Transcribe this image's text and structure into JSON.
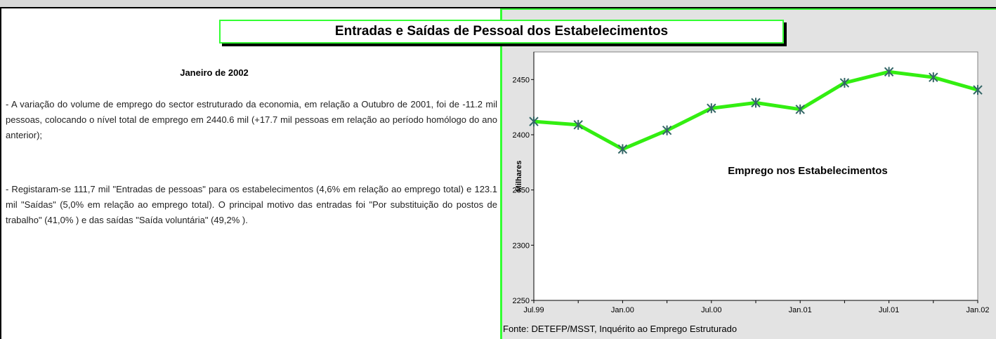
{
  "header": {
    "title": "Entradas e Saídas de Pessoal dos Estabelecimentos"
  },
  "document": {
    "subtitle": "Janeiro de 2002",
    "paragraphs": [
      "- A variação do volume de emprego do sector estruturado da economia, em relação a Outubro de 2001, foi  de -11.2 mil pessoas, colocando o nível total de emprego em 2440.6 mil (+17.7 mil pessoas em relação ao período homólogo do ano anterior);",
      "- Registaram-se 111,7 mil \"Entradas de pessoas\" para os estabelecimentos (4,6% em relação ao emprego total) e 123.1 mil \"Saídas\" (5,0% em relação ao emprego total). O principal motivo das entradas foi \"Por substituição do postos de trabalho\" (41,0% ) e das saídas \"Saída voluntária\" (49,2% )."
    ],
    "source": "Fonte: DETEFP/MSST, Inquérito ao Emprego Estruturado"
  },
  "chart_data": {
    "type": "line",
    "title": "Emprego nos Estabelecimentos",
    "y_label": "Milhares",
    "categories": [
      "Jul.99",
      null,
      "Jan.00",
      null,
      "Jul.00",
      null,
      "Jan.01",
      null,
      "Jul.01",
      null,
      "Jan.02"
    ],
    "series": [
      {
        "name": "Emprego",
        "color": "#33ee11",
        "marker_color": "#336666",
        "values": [
          2412,
          2409,
          2387,
          2404,
          2424,
          2429,
          2423,
          2447,
          2457,
          2452,
          2440.6
        ]
      }
    ],
    "ylim": [
      2250,
      2475
    ],
    "yticks": [
      2250,
      2300,
      2350,
      2400,
      2450
    ],
    "grid": false
  }
}
